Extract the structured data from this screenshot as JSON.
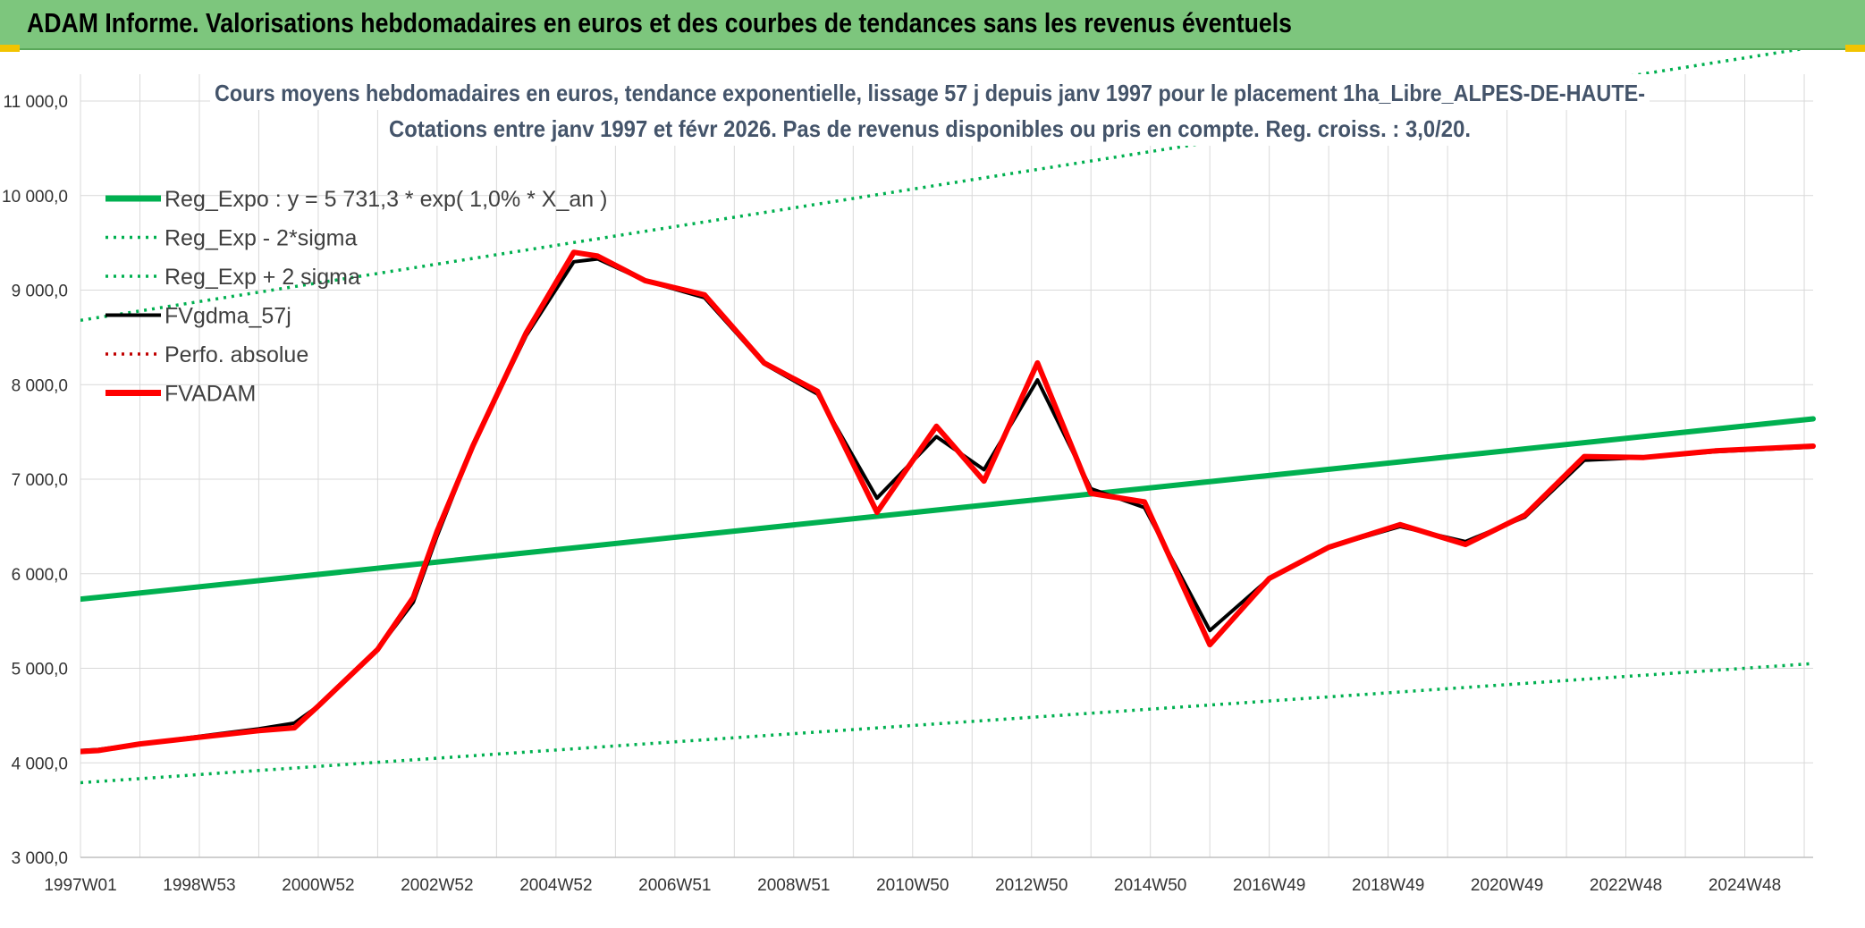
{
  "header": {
    "title": "ADAM Informe. Valorisations hebdomadaires en euros et des courbes de tendances sans les revenus éventuels"
  },
  "colors": {
    "header_bg": "#7dc67d",
    "trend_green": "#00b050",
    "band_green": "#00b050",
    "smoothed_black": "#000000",
    "perf_red": "#c00000",
    "fvadam_red": "#ff0000",
    "grid": "#d9d9d9"
  },
  "chart_data": {
    "type": "line",
    "title": [
      "Cours moyens hebdomadaires en euros, tendance exponentielle, lissage 57 j depuis janv 1997 pour le placement 1ha_Libre_ALPES-DE-HAUTE-",
      "Cotations entre janv 1997 et févr 2026. Pas de revenus disponibles ou pris en compte. Reg. croiss. : 3,0/20."
    ],
    "xlim": [
      1997.0,
      2026.15
    ],
    "ylim": [
      3000,
      11000
    ],
    "x_ticks": [
      {
        "label": "1997W01",
        "x": 1997.0
      },
      {
        "label": "1998W53",
        "x": 1999.0
      },
      {
        "label": "2000W52",
        "x": 2001.0
      },
      {
        "label": "2002W52",
        "x": 2003.0
      },
      {
        "label": "2004W52",
        "x": 2005.0
      },
      {
        "label": "2006W51",
        "x": 2007.0
      },
      {
        "label": "2008W51",
        "x": 2009.0
      },
      {
        "label": "2010W50",
        "x": 2011.0
      },
      {
        "label": "2012W50",
        "x": 2013.0
      },
      {
        "label": "2014W50",
        "x": 2015.0
      },
      {
        "label": "2016W49",
        "x": 2017.0
      },
      {
        "label": "2018W49",
        "x": 2019.0
      },
      {
        "label": "2020W49",
        "x": 2021.0
      },
      {
        "label": "2022W48",
        "x": 2023.0
      },
      {
        "label": "2024W48",
        "x": 2025.0
      }
    ],
    "y_ticks": [
      {
        "label": "3 000,0",
        "y": 3000
      },
      {
        "label": "4 000,0",
        "y": 4000
      },
      {
        "label": "5 000,0",
        "y": 5000
      },
      {
        "label": "6 000,0",
        "y": 6000
      },
      {
        "label": "7 000,0",
        "y": 7000
      },
      {
        "label": "8 000,0",
        "y": 8000
      },
      {
        "label": "9 000,0",
        "y": 9000
      },
      {
        "label": "10 000,0",
        "y": 10000
      },
      {
        "label": "11 000,0",
        "y": 11000
      }
    ],
    "grid": true,
    "legend_position": "top-left",
    "series": [
      {
        "name": "Reg_Expo : y = 5 731,3 * exp( 1,0% *  X_an )",
        "style": "solid-thick",
        "color": "#00b050",
        "points": [
          [
            1997.0,
            5731
          ],
          [
            2026.15,
            7638
          ]
        ]
      },
      {
        "name": "Reg_Exp - 2*sigma",
        "style": "dotted",
        "color": "#00b050",
        "points": [
          [
            1997.0,
            3790
          ],
          [
            2026.15,
            5050
          ]
        ]
      },
      {
        "name": "Reg_Exp + 2 sigma",
        "style": "dotted",
        "color": "#00b050",
        "points": [
          [
            1997.0,
            8680
          ],
          [
            2026.15,
            11570
          ]
        ]
      },
      {
        "name": "FVgdma_57j",
        "style": "solid",
        "color": "#000000",
        "points": [
          [
            1997.0,
            4130
          ],
          [
            1997.3,
            4140
          ],
          [
            1998.0,
            4200
          ],
          [
            1999.0,
            4280
          ],
          [
            2000.0,
            4360
          ],
          [
            2000.6,
            4420
          ],
          [
            2001.0,
            4600
          ],
          [
            2002.0,
            5200
          ],
          [
            2002.6,
            5700
          ],
          [
            2003.0,
            6400
          ],
          [
            2003.6,
            7350
          ],
          [
            2004.5,
            8520
          ],
          [
            2005.3,
            9300
          ],
          [
            2005.7,
            9330
          ],
          [
            2006.5,
            9100
          ],
          [
            2007.5,
            8920
          ],
          [
            2008.5,
            8220
          ],
          [
            2009.4,
            7900
          ],
          [
            2010.4,
            6800
          ],
          [
            2011.4,
            7450
          ],
          [
            2012.2,
            7100
          ],
          [
            2013.1,
            8050
          ],
          [
            2014.0,
            6900
          ],
          [
            2014.9,
            6700
          ],
          [
            2016.0,
            5400
          ],
          [
            2017.0,
            5950
          ],
          [
            2018.0,
            6280
          ],
          [
            2019.2,
            6500
          ],
          [
            2020.3,
            6340
          ],
          [
            2021.3,
            6600
          ],
          [
            2022.3,
            7200
          ],
          [
            2023.3,
            7230
          ],
          [
            2024.5,
            7290
          ],
          [
            2026.15,
            7340
          ]
        ]
      },
      {
        "name": "Perfo. absolue",
        "style": "dotted",
        "color": "#c00000",
        "points": []
      },
      {
        "name": "FVADAM",
        "style": "solid-thick",
        "color": "#ff0000",
        "points": [
          [
            1997.0,
            4120
          ],
          [
            1997.3,
            4130
          ],
          [
            1998.0,
            4200
          ],
          [
            1999.0,
            4270
          ],
          [
            2000.0,
            4340
          ],
          [
            2000.6,
            4370
          ],
          [
            2001.0,
            4600
          ],
          [
            2002.0,
            5200
          ],
          [
            2002.6,
            5750
          ],
          [
            2003.0,
            6450
          ],
          [
            2003.6,
            7350
          ],
          [
            2004.5,
            8550
          ],
          [
            2005.3,
            9400
          ],
          [
            2005.7,
            9360
          ],
          [
            2006.5,
            9100
          ],
          [
            2007.5,
            8950
          ],
          [
            2008.5,
            8230
          ],
          [
            2009.4,
            7930
          ],
          [
            2010.4,
            6650
          ],
          [
            2011.4,
            7560
          ],
          [
            2012.2,
            6980
          ],
          [
            2013.1,
            8230
          ],
          [
            2014.0,
            6850
          ],
          [
            2014.9,
            6760
          ],
          [
            2016.0,
            5250
          ],
          [
            2017.0,
            5950
          ],
          [
            2018.0,
            6280
          ],
          [
            2019.2,
            6520
          ],
          [
            2020.3,
            6310
          ],
          [
            2021.3,
            6620
          ],
          [
            2022.3,
            7240
          ],
          [
            2023.3,
            7230
          ],
          [
            2024.5,
            7300
          ],
          [
            2026.15,
            7350
          ]
        ]
      }
    ]
  }
}
